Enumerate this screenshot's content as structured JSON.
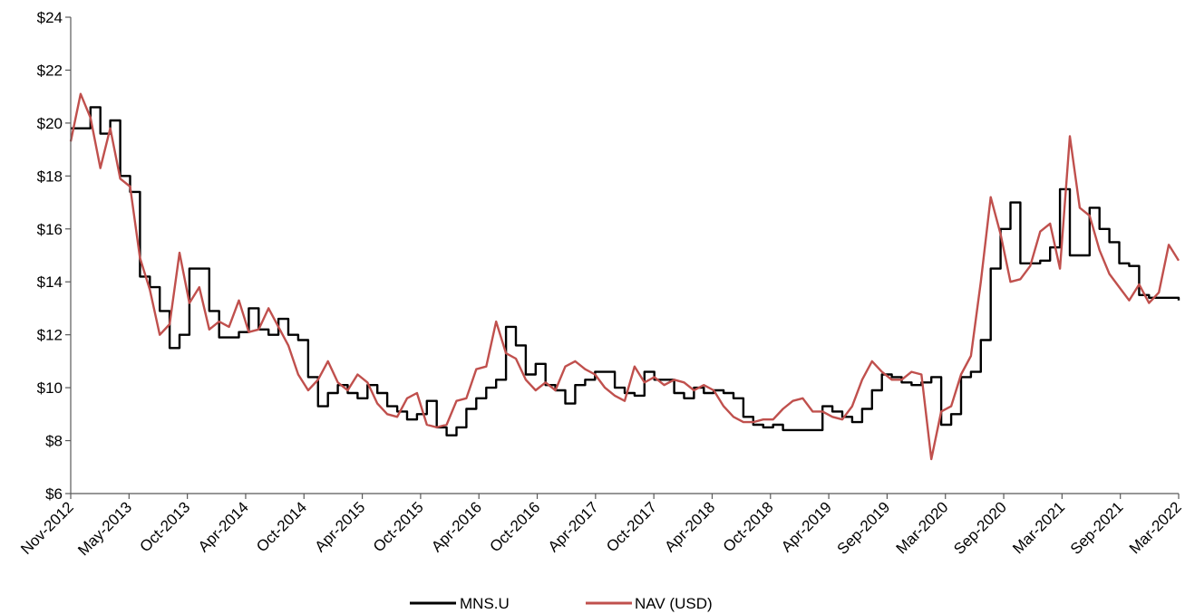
{
  "chart_data": {
    "type": "line",
    "title": "",
    "xlabel": "",
    "ylabel": "",
    "x_range": [
      "2012-11",
      "2022-03"
    ],
    "ylim": [
      6,
      24
    ],
    "y_ticks": [
      6,
      8,
      10,
      12,
      14,
      16,
      18,
      20,
      22,
      24
    ],
    "y_tick_labels": [
      "$6",
      "$8",
      "$10",
      "$12",
      "$14",
      "$16",
      "$18",
      "$20",
      "$22",
      "$24"
    ],
    "x_tick_labels": [
      "Nov-2012",
      "May-2013",
      "Oct-2013",
      "Apr-2014",
      "Oct-2014",
      "Apr-2015",
      "Oct-2015",
      "Apr-2016",
      "Oct-2016",
      "Apr-2017",
      "Oct-2017",
      "Apr-2018",
      "Oct-2018",
      "Apr-2019",
      "Sep-2019",
      "Mar-2020",
      "Sep-2020",
      "Mar-2021",
      "Sep-2021",
      "Mar-2022"
    ],
    "grid": false,
    "legend_position": "bottom",
    "series": [
      {
        "name": "MNS.U",
        "color": "#000000",
        "x": [
          "2012-11",
          "2013-01",
          "2013-02",
          "2013-03",
          "2013-04",
          "2013-05",
          "2013-06",
          "2013-07",
          "2013-08",
          "2013-09",
          "2013-10",
          "2013-11",
          "2013-12",
          "2014-01",
          "2014-02",
          "2014-03",
          "2014-04",
          "2014-05",
          "2014-06",
          "2014-07",
          "2014-08",
          "2014-09",
          "2014-10",
          "2014-11",
          "2014-12",
          "2015-01",
          "2015-02",
          "2015-03",
          "2015-04",
          "2015-05",
          "2015-06",
          "2015-07",
          "2015-08",
          "2015-09",
          "2015-10",
          "2015-11",
          "2015-12",
          "2016-01",
          "2016-02",
          "2016-03",
          "2016-04",
          "2016-05",
          "2016-06",
          "2016-07",
          "2016-08",
          "2016-09",
          "2016-10",
          "2016-11",
          "2016-12",
          "2017-01",
          "2017-02",
          "2017-03",
          "2017-04",
          "2017-05",
          "2017-06",
          "2017-07",
          "2017-08",
          "2017-09",
          "2017-10",
          "2017-11",
          "2017-12",
          "2018-01",
          "2018-02",
          "2018-03",
          "2018-04",
          "2018-05",
          "2018-06",
          "2018-07",
          "2018-08",
          "2018-09",
          "2018-10",
          "2018-11",
          "2018-12",
          "2019-01",
          "2019-02",
          "2019-03",
          "2019-04",
          "2019-05",
          "2019-06",
          "2019-07",
          "2019-08",
          "2019-09",
          "2019-10",
          "2019-11",
          "2019-12",
          "2020-01",
          "2020-02",
          "2020-03",
          "2020-04",
          "2020-05",
          "2020-06",
          "2020-07",
          "2020-08",
          "2020-09",
          "2020-10",
          "2020-11",
          "2020-12",
          "2021-01",
          "2021-02",
          "2021-03",
          "2021-04",
          "2021-05",
          "2021-06",
          "2021-07",
          "2021-08",
          "2021-09",
          "2021-10",
          "2021-11",
          "2021-12",
          "2022-01",
          "2022-02",
          "2022-03"
        ],
        "y": [
          19.8,
          20.6,
          19.6,
          20.1,
          18.0,
          17.4,
          14.2,
          13.8,
          12.9,
          11.5,
          12.0,
          14.5,
          14.5,
          12.9,
          11.9,
          11.9,
          12.1,
          13.0,
          12.2,
          12.0,
          12.6,
          12.0,
          11.8,
          10.4,
          9.3,
          9.8,
          10.1,
          9.8,
          9.6,
          10.1,
          9.8,
          9.3,
          9.1,
          8.8,
          9.0,
          9.5,
          8.5,
          8.2,
          8.5,
          9.2,
          9.6,
          10.0,
          10.3,
          12.3,
          11.6,
          10.5,
          10.9,
          10.1,
          9.9,
          9.4,
          10.1,
          10.3,
          10.6,
          10.6,
          10.0,
          9.8,
          9.7,
          10.6,
          10.3,
          10.3,
          9.8,
          9.6,
          10.0,
          9.8,
          9.9,
          9.8,
          9.6,
          8.9,
          8.6,
          8.5,
          8.6,
          8.4,
          8.4,
          8.4,
          8.4,
          9.3,
          9.1,
          8.9,
          8.7,
          9.2,
          9.9,
          10.5,
          10.4,
          10.2,
          10.1,
          10.2,
          10.4,
          8.6,
          9.0,
          10.4,
          10.6,
          11.8,
          14.5,
          16.0,
          17.0,
          14.7,
          14.7,
          14.8,
          15.3,
          17.5,
          15.0,
          15.0,
          16.8,
          16.0,
          15.5,
          14.7,
          14.6,
          13.5,
          13.4,
          13.4,
          13.4,
          13.3
        ]
      },
      {
        "name": "NAV (USD)",
        "color": "#c0504d",
        "x": [
          "2012-11",
          "2012-12",
          "2013-01",
          "2013-02",
          "2013-03",
          "2013-04",
          "2013-05",
          "2013-06",
          "2013-07",
          "2013-08",
          "2013-09",
          "2013-10",
          "2013-11",
          "2013-12",
          "2014-01",
          "2014-02",
          "2014-03",
          "2014-04",
          "2014-05",
          "2014-06",
          "2014-07",
          "2014-08",
          "2014-09",
          "2014-10",
          "2014-11",
          "2014-12",
          "2015-01",
          "2015-02",
          "2015-03",
          "2015-04",
          "2015-05",
          "2015-06",
          "2015-07",
          "2015-08",
          "2015-09",
          "2015-10",
          "2015-11",
          "2015-12",
          "2016-01",
          "2016-02",
          "2016-03",
          "2016-04",
          "2016-05",
          "2016-06",
          "2016-07",
          "2016-08",
          "2016-09",
          "2016-10",
          "2016-11",
          "2016-12",
          "2017-01",
          "2017-02",
          "2017-03",
          "2017-04",
          "2017-05",
          "2017-06",
          "2017-07",
          "2017-08",
          "2017-09",
          "2017-10",
          "2017-11",
          "2017-12",
          "2018-01",
          "2018-02",
          "2018-03",
          "2018-04",
          "2018-05",
          "2018-06",
          "2018-07",
          "2018-08",
          "2018-09",
          "2018-10",
          "2018-11",
          "2018-12",
          "2019-01",
          "2019-02",
          "2019-03",
          "2019-04",
          "2019-05",
          "2019-06",
          "2019-07",
          "2019-08",
          "2019-09",
          "2019-10",
          "2019-11",
          "2019-12",
          "2020-01",
          "2020-02",
          "2020-03",
          "2020-04",
          "2020-05",
          "2020-06",
          "2020-07",
          "2020-08",
          "2020-09",
          "2020-10",
          "2020-11",
          "2020-12",
          "2021-01",
          "2021-02",
          "2021-03",
          "2021-04",
          "2021-05",
          "2021-06",
          "2021-07",
          "2021-08",
          "2021-09",
          "2021-10",
          "2021-11",
          "2021-12",
          "2022-01",
          "2022-02",
          "2022-03"
        ],
        "y": [
          19.3,
          21.1,
          20.2,
          18.3,
          19.8,
          17.9,
          17.6,
          14.9,
          13.7,
          12.0,
          12.4,
          15.1,
          13.2,
          13.8,
          12.2,
          12.5,
          12.3,
          13.3,
          12.1,
          12.2,
          13.0,
          12.3,
          11.6,
          10.5,
          9.9,
          10.3,
          11.0,
          10.2,
          9.9,
          10.5,
          10.2,
          9.4,
          9.0,
          8.9,
          9.6,
          9.8,
          8.6,
          8.5,
          8.6,
          9.5,
          9.6,
          10.7,
          10.8,
          12.5,
          11.3,
          11.1,
          10.3,
          9.9,
          10.2,
          9.9,
          10.8,
          11.0,
          10.7,
          10.5,
          10.0,
          9.7,
          9.5,
          10.8,
          10.2,
          10.4,
          10.1,
          10.3,
          10.2,
          9.9,
          10.1,
          9.9,
          9.3,
          8.9,
          8.7,
          8.7,
          8.8,
          8.8,
          9.2,
          9.5,
          9.6,
          9.1,
          9.1,
          8.9,
          8.8,
          9.3,
          10.3,
          11.0,
          10.6,
          10.3,
          10.3,
          10.6,
          10.5,
          7.3,
          9.1,
          9.3,
          10.5,
          11.2,
          14.0,
          17.2,
          15.8,
          14.0,
          14.1,
          14.6,
          15.9,
          16.2,
          14.5,
          19.5,
          16.8,
          16.5,
          15.2,
          14.3,
          13.8,
          13.3,
          13.9,
          13.2,
          13.6,
          15.4,
          14.8
        ]
      }
    ]
  }
}
